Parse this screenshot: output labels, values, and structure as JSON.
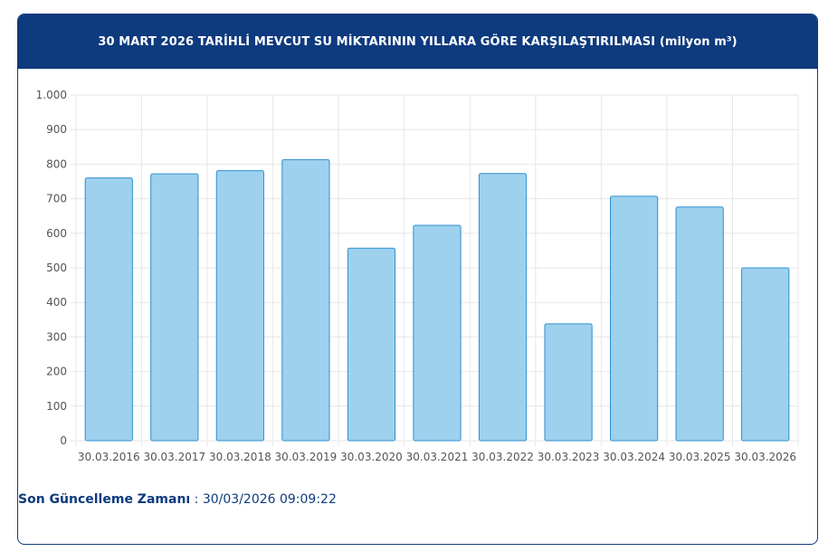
{
  "header": {
    "title": "30 MART 2026 TARİHLİ MEVCUT SU MİKTARININ YILLARA GÖRE KARŞILAŞTIRILMASI (milyon m³)"
  },
  "footer": {
    "label": "Son Güncelleme Zamanı",
    "separator": " : ",
    "value": "30/03/2026 09:09:22"
  },
  "colors": {
    "header_bg": "#0e3a7e",
    "bar_fill": "#9dd1ee",
    "bar_stroke": "#2f8fd0",
    "grid": "#e6e6e6",
    "axis_text": "#555555"
  },
  "chart_data": {
    "type": "bar",
    "title": "30 MART 2026 TARİHLİ MEVCUT SU MİKTARININ YILLARA GÖRE KARŞILAŞTIRILMASI (milyon m³)",
    "categories": [
      "30.03.2016",
      "30.03.2017",
      "30.03.2018",
      "30.03.2019",
      "30.03.2020",
      "30.03.2021",
      "30.03.2022",
      "30.03.2023",
      "30.03.2024",
      "30.03.2025",
      "30.03.2026"
    ],
    "values": [
      760,
      772,
      781,
      813,
      557,
      623,
      773,
      338,
      707,
      676,
      500
    ],
    "ylim": [
      0,
      1000
    ],
    "yticks": [
      0,
      100,
      200,
      300,
      400,
      500,
      600,
      700,
      800,
      900,
      1000
    ],
    "ytick_labels": [
      "0",
      "100",
      "200",
      "300",
      "400",
      "500",
      "600",
      "700",
      "800",
      "900",
      "1.000"
    ],
    "xlabel": "",
    "ylabel": "",
    "grid": true,
    "legend": "none"
  }
}
